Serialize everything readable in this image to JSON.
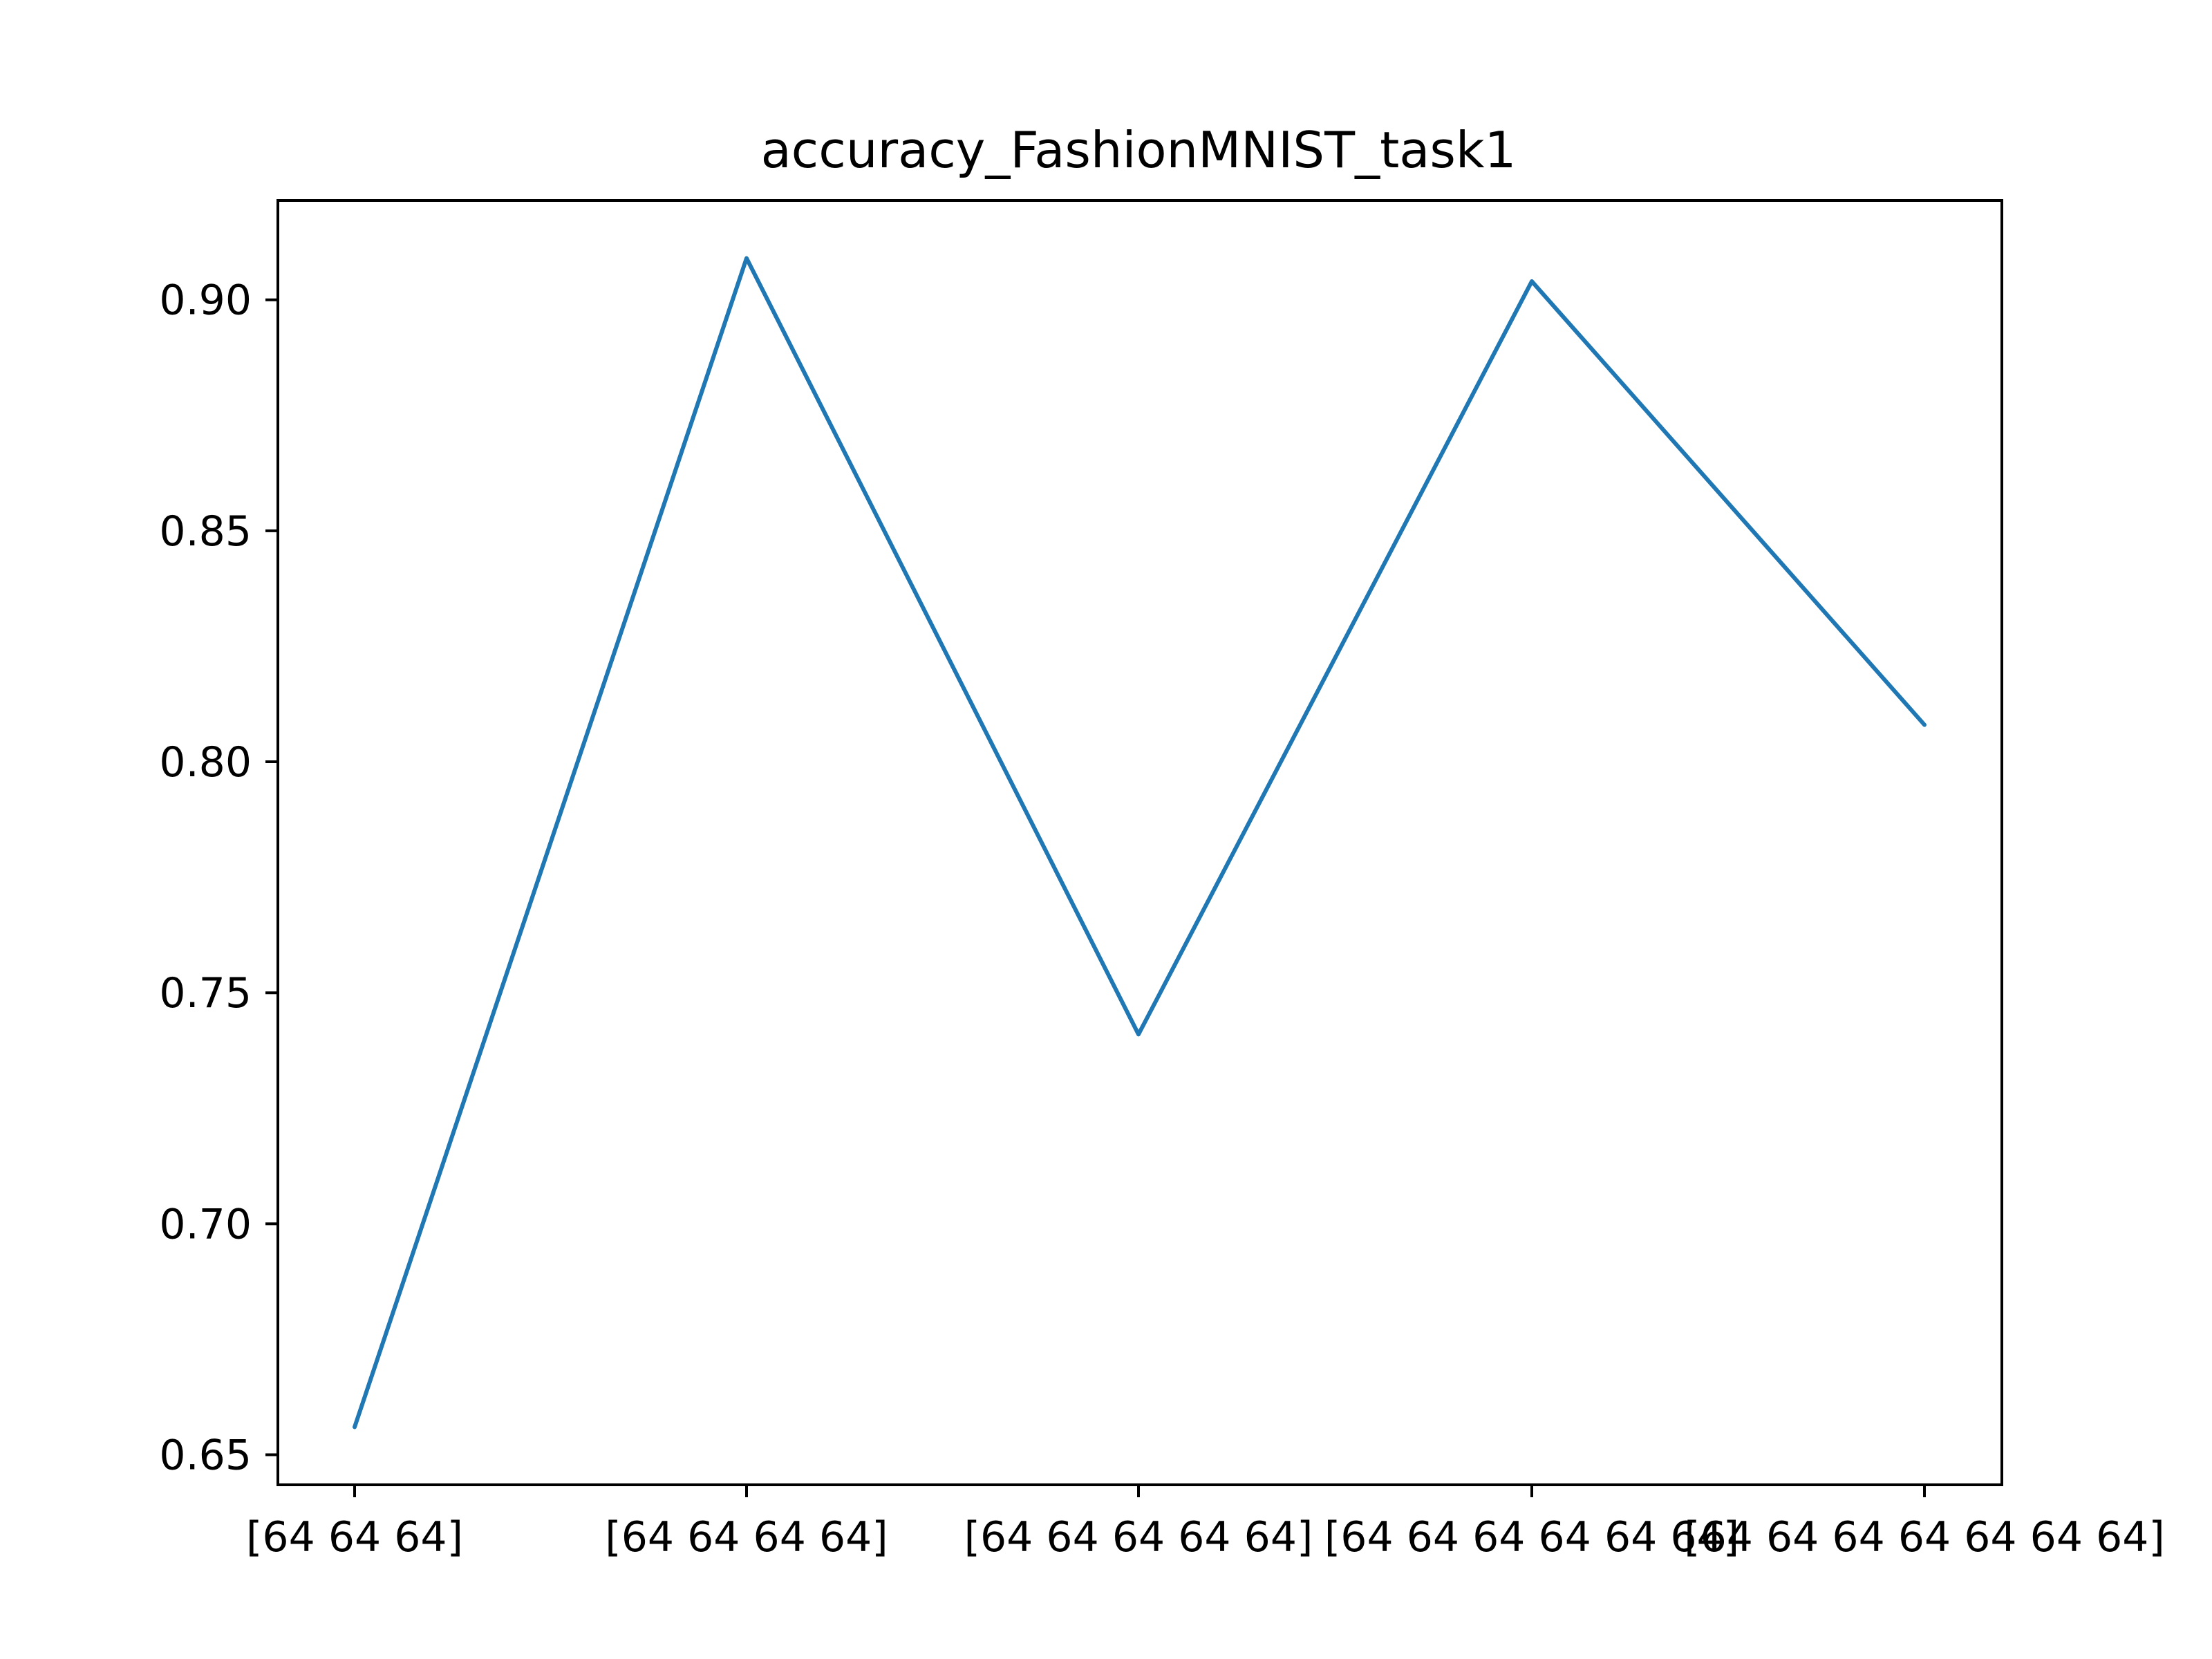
{
  "chart_data": {
    "type": "line",
    "title": "accuracy_FashionMNIST_task1",
    "xlabel": "",
    "ylabel": "",
    "categories": [
      "[64 64 64]",
      "[64 64 64 64]",
      "[64 64 64 64 64]",
      "[64 64 64 64 64 64]",
      "[64 64 64 64 64 64 64]"
    ],
    "series": [
      {
        "values": [
          0.656,
          0.909,
          0.741,
          0.904,
          0.808
        ],
        "color": "#1f77b4"
      }
    ],
    "ylim": [
      0.6435,
      0.9215
    ],
    "yticks": [
      0.65,
      0.7,
      0.75,
      0.8,
      0.85,
      0.9
    ],
    "ytick_labels": [
      "0.65",
      "0.70",
      "0.75",
      "0.80",
      "0.85",
      "0.90"
    ],
    "grid": false,
    "legend": "none"
  }
}
